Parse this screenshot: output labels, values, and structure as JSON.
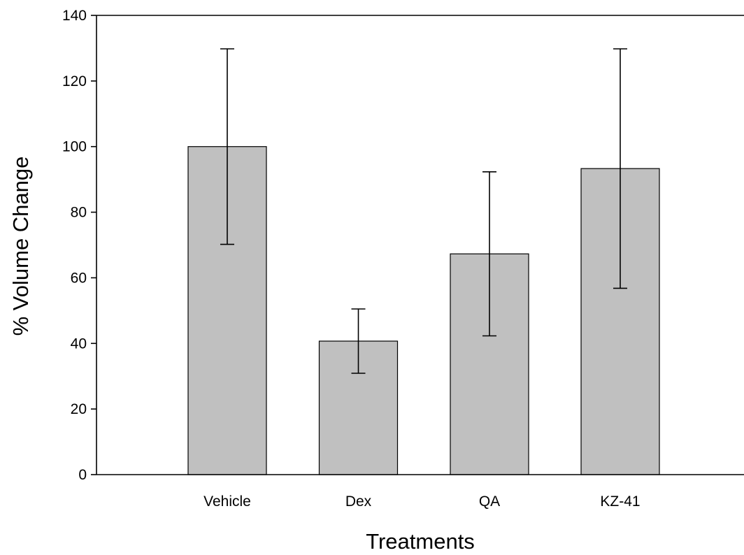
{
  "chart_data": {
    "type": "bar",
    "title": "",
    "xlabel": "Treatments",
    "ylabel": "% Volume Change",
    "categories": [
      "Vehicle",
      "Dex",
      "QA",
      "KZ-41"
    ],
    "values": [
      100,
      40.7,
      67.3,
      93.3
    ],
    "error": [
      29.8,
      9.8,
      25,
      36.5
    ],
    "ylim": [
      0,
      140
    ],
    "yticks": [
      0,
      20,
      40,
      60,
      80,
      100,
      120,
      140
    ],
    "ytick_labels": [
      "0",
      "20",
      "40",
      "60",
      "80",
      "100",
      "120",
      "140"
    ],
    "grid": false,
    "legend": "none",
    "colors": {
      "bar_fill": "#c0c0c0",
      "bar_edge": "#000000",
      "axis": "#000000"
    }
  }
}
